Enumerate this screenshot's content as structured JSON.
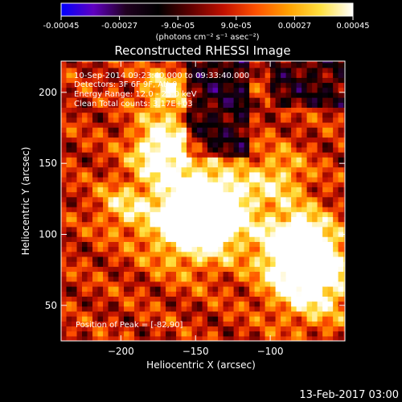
{
  "colorbar": {
    "tick_labels": [
      "-0.00045",
      "-0.00027",
      "-9.0e-05",
      "9.0e-05",
      "0.00027",
      "0.00045"
    ],
    "tick_values": [
      -0.00045,
      -0.00027,
      -9e-05,
      9e-05,
      0.00027,
      0.00045
    ],
    "range": [
      -0.00045,
      0.00045
    ],
    "unit_label": "(photons cm⁻² s⁻¹ asec⁻²)",
    "colormap": [
      "#0000ff",
      "#6000c0",
      "#200020",
      "#000000",
      "#600000",
      "#c01000",
      "#ff5000",
      "#ffa000",
      "#ffe040",
      "#ffffff"
    ]
  },
  "image": {
    "title": "Reconstructed RHESSI Image",
    "annotations": [
      "10-Sep-2014 09:23:40.000 to 09:33:40.000",
      "Detectors: 3F 6F 9F, Att 0",
      "Energy Range: 12.0 - 25.0 keV",
      "Clean     Total counts: 3.17E+03"
    ],
    "peak_label": "Position of Peak = [-82,90]",
    "x_axis": {
      "label": "Heliocentric X (arcsec)",
      "range": [
        -240,
        -50
      ],
      "ticks": [
        -200,
        -150,
        -100
      ],
      "tick_labels": [
        "−200",
        "−150",
        "−100"
      ]
    },
    "y_axis": {
      "label": "Heliocentric Y (arcsec)",
      "range": [
        25,
        222
      ],
      "ticks": [
        50,
        100,
        150,
        200
      ],
      "tick_labels": [
        "50",
        "100",
        "150",
        "200"
      ]
    }
  },
  "footer": {
    "timestamp": "13-Feb-2017 03:00"
  }
}
